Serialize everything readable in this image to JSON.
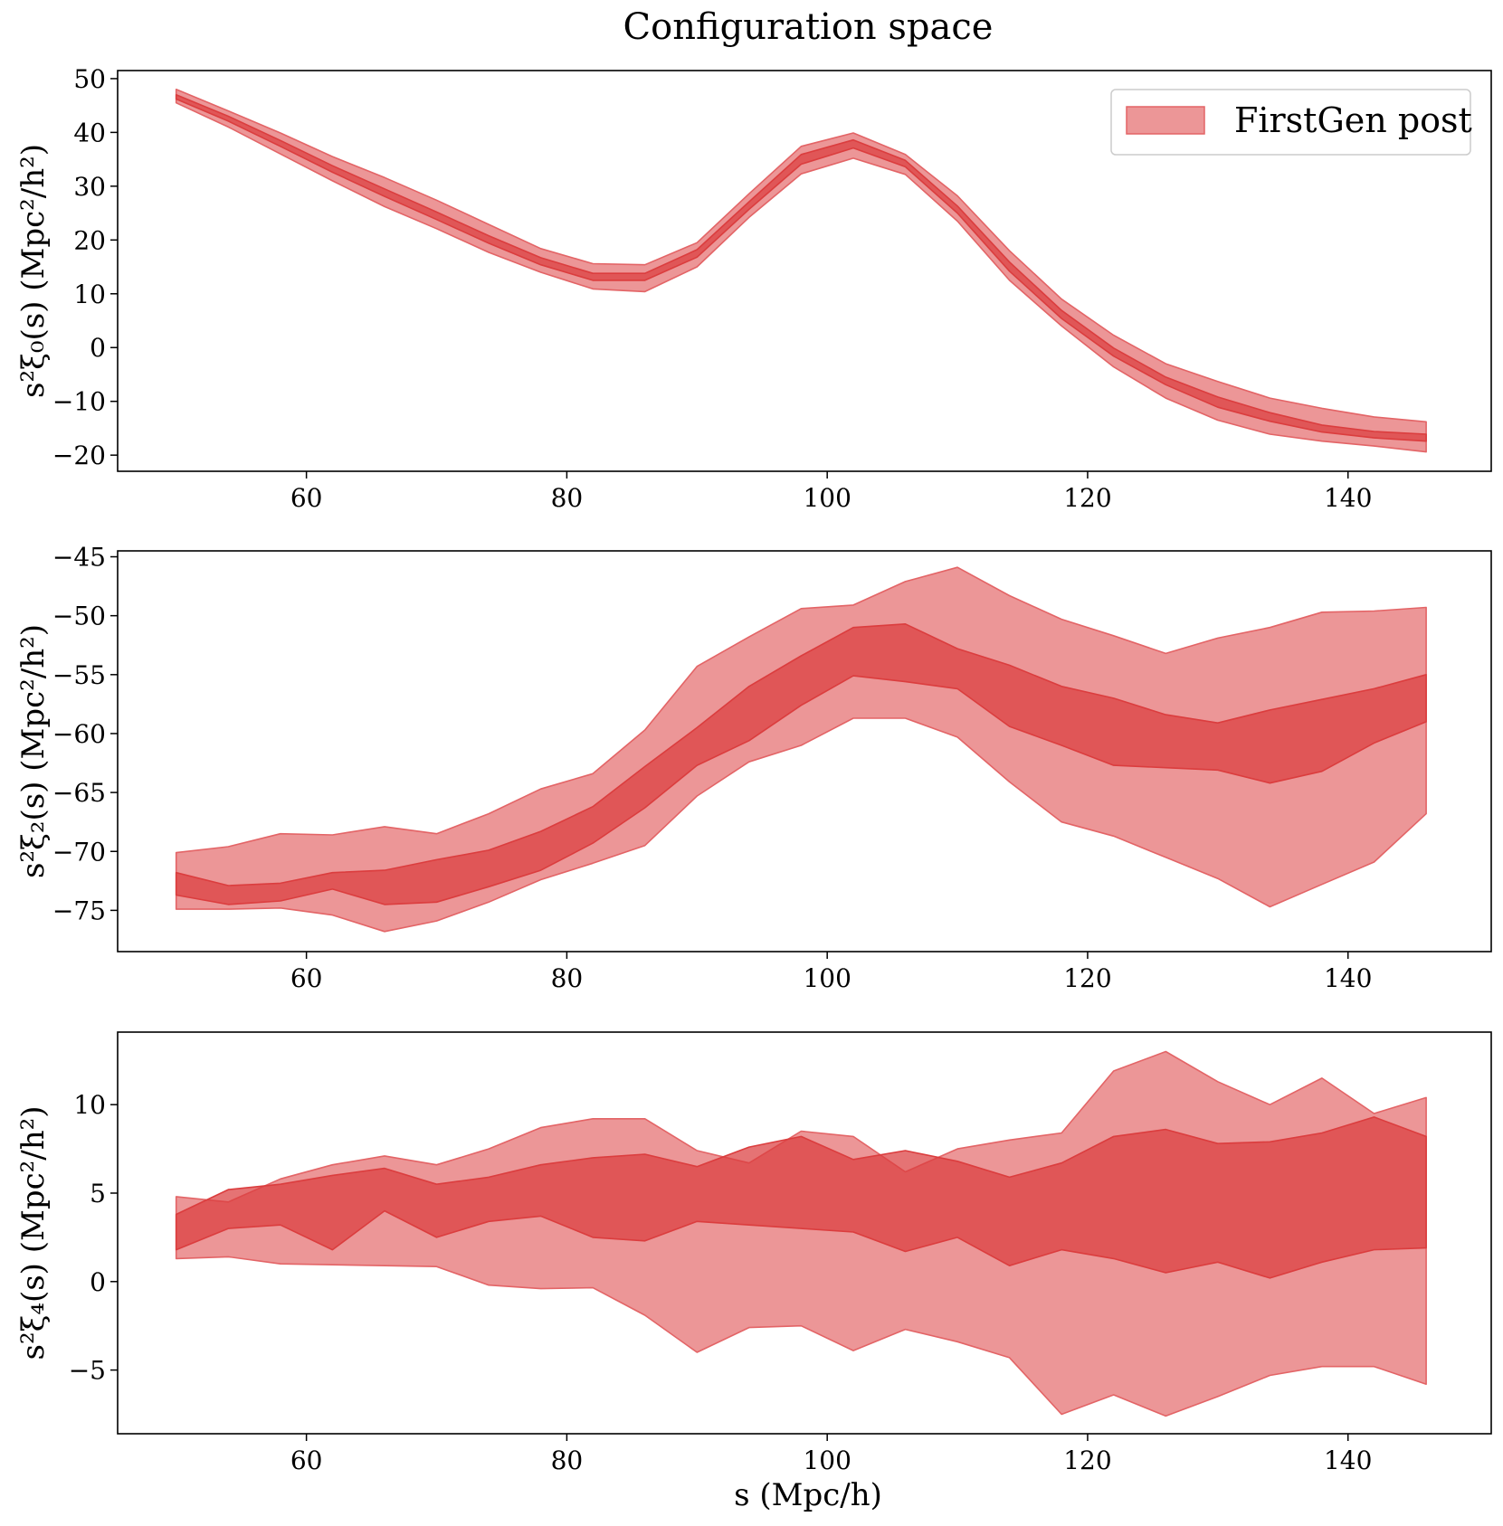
{
  "chart_data": {
    "type": "area",
    "title": "Configuration space",
    "legend": {
      "label": "FirstGen post",
      "location": "top-right",
      "color": "#e36466"
    },
    "colors": {
      "outer_band": "#e36466",
      "inner_band": "#db3d3e"
    },
    "xlabel": "s (Mpc/h)",
    "panels": [
      {
        "id": "xi0",
        "ylabel": "s²ξ₀(s) (Mpc²/h²)",
        "xlim": [
          45.5,
          151
        ],
        "ylim": [
          -23,
          51.5
        ],
        "xticks": [
          60,
          80,
          100,
          120,
          140
        ],
        "xtick_labels": [
          "60",
          "80",
          "100",
          "120",
          "140"
        ],
        "yticks": [
          -20,
          -10,
          0,
          10,
          20,
          30,
          40,
          50
        ],
        "ytick_labels": [
          "−20",
          "−10",
          "0",
          "10",
          "20",
          "30",
          "40",
          "50"
        ],
        "x": [
          50,
          54,
          58,
          62,
          66,
          70,
          74,
          78,
          82,
          86,
          90,
          94,
          98,
          102,
          106,
          110,
          114,
          118,
          122,
          126,
          130,
          134,
          138,
          142,
          146
        ],
        "outer_upper": [
          48.0,
          44.0,
          39.9,
          35.5,
          31.6,
          27.4,
          22.9,
          18.4,
          15.6,
          15.4,
          19.5,
          28.6,
          37.4,
          39.9,
          35.9,
          28.2,
          18.0,
          9.0,
          2.3,
          -3.0,
          -6.3,
          -9.4,
          -11.3,
          -12.9,
          -13.8
        ],
        "outer_lower": [
          45.5,
          41.0,
          36.0,
          31.0,
          26.2,
          22.1,
          17.7,
          14.0,
          10.9,
          10.4,
          15.0,
          24.2,
          32.3,
          35.2,
          32.2,
          23.5,
          12.5,
          4.0,
          -3.6,
          -9.4,
          -13.5,
          -16.1,
          -17.4,
          -18.3,
          -19.4
        ],
        "inner_upper": [
          47.0,
          43.0,
          38.5,
          33.8,
          29.5,
          25.2,
          20.8,
          16.7,
          13.8,
          13.8,
          18.2,
          27.1,
          35.9,
          38.6,
          34.8,
          26.3,
          15.9,
          6.9,
          -0.1,
          -5.5,
          -9.2,
          -12.1,
          -14.4,
          -15.6,
          -16.1
        ],
        "inner_lower": [
          46.2,
          42.1,
          37.4,
          32.6,
          28.1,
          23.8,
          19.4,
          15.4,
          12.5,
          12.5,
          16.8,
          25.7,
          34.1,
          37.1,
          33.6,
          25.0,
          14.2,
          5.4,
          -1.6,
          -6.9,
          -11.1,
          -13.7,
          -15.7,
          -16.8,
          -17.4
        ]
      },
      {
        "id": "xi2",
        "ylabel": "s²ξ₂(s) (Mpc²/h²)",
        "xlim": [
          45.5,
          151
        ],
        "ylim": [
          -78.5,
          -44.5
        ],
        "xticks": [
          60,
          80,
          100,
          120,
          140
        ],
        "xtick_labels": [
          "60",
          "80",
          "100",
          "120",
          "140"
        ],
        "yticks": [
          -75,
          -70,
          -65,
          -60,
          -55,
          -50,
          -45
        ],
        "ytick_labels": [
          "−75",
          "−70",
          "−65",
          "−60",
          "−55",
          "−50",
          "−45"
        ],
        "x": [
          50,
          54,
          58,
          62,
          66,
          70,
          74,
          78,
          82,
          86,
          90,
          94,
          98,
          102,
          106,
          110,
          114,
          118,
          122,
          126,
          130,
          134,
          138,
          142,
          146
        ],
        "outer_upper": [
          -70.1,
          -69.6,
          -68.5,
          -68.6,
          -67.9,
          -68.5,
          -66.8,
          -64.7,
          -63.4,
          -59.7,
          -54.3,
          -51.8,
          -49.4,
          -49.1,
          -47.1,
          -45.9,
          -48.3,
          -50.3,
          -51.7,
          -53.2,
          -51.9,
          -51.0,
          -49.7,
          -49.6,
          -49.3
        ],
        "outer_lower": [
          -74.9,
          -74.9,
          -74.8,
          -75.4,
          -76.8,
          -75.9,
          -74.3,
          -72.4,
          -71.0,
          -69.5,
          -65.3,
          -62.4,
          -61.0,
          -58.7,
          -58.7,
          -60.3,
          -64.1,
          -67.5,
          -68.7,
          -70.5,
          -72.3,
          -74.7,
          -72.8,
          -70.9,
          -66.8
        ],
        "inner_upper": [
          -71.8,
          -72.9,
          -72.7,
          -71.8,
          -71.6,
          -70.7,
          -69.9,
          -68.3,
          -66.2,
          -62.8,
          -59.5,
          -56.0,
          -53.4,
          -51.0,
          -50.7,
          -52.8,
          -54.2,
          -56.0,
          -57.0,
          -58.4,
          -59.1,
          -58.0,
          -57.1,
          -56.2,
          -55.0
        ],
        "inner_lower": [
          -73.7,
          -74.5,
          -74.2,
          -73.2,
          -74.5,
          -74.3,
          -73.0,
          -71.6,
          -69.3,
          -66.3,
          -62.7,
          -60.6,
          -57.6,
          -55.1,
          -55.6,
          -56.2,
          -59.4,
          -61.0,
          -62.7,
          -62.9,
          -63.1,
          -64.2,
          -63.2,
          -60.8,
          -59.0
        ]
      },
      {
        "id": "xi4",
        "ylabel": "s²ξ₄(s) (Mpc²/h²)",
        "xlim": [
          45.5,
          151
        ],
        "ylim": [
          -8.6,
          14.1
        ],
        "xticks": [
          60,
          80,
          100,
          120,
          140
        ],
        "xtick_labels": [
          "60",
          "80",
          "100",
          "120",
          "140"
        ],
        "yticks": [
          -5,
          0,
          5,
          10
        ],
        "ytick_labels": [
          "−5",
          "0",
          "5",
          "10"
        ],
        "x": [
          50,
          54,
          58,
          62,
          66,
          70,
          74,
          78,
          82,
          86,
          90,
          94,
          98,
          102,
          106,
          110,
          114,
          118,
          122,
          126,
          130,
          134,
          138,
          142,
          146
        ],
        "outer_upper": [
          4.8,
          4.5,
          5.8,
          6.6,
          7.1,
          6.6,
          7.5,
          8.7,
          9.2,
          9.2,
          7.4,
          6.7,
          8.5,
          8.2,
          6.2,
          7.5,
          8.0,
          8.4,
          11.9,
          13.0,
          11.3,
          10.0,
          11.5,
          9.5,
          10.4
        ],
        "outer_lower": [
          1.3,
          1.4,
          1.0,
          0.95,
          0.9,
          0.85,
          -0.2,
          -0.4,
          -0.35,
          -1.9,
          -4.0,
          -2.6,
          -2.5,
          -3.9,
          -2.7,
          -3.4,
          -4.3,
          -7.5,
          -6.4,
          -7.6,
          -6.5,
          -5.3,
          -4.8,
          -4.8,
          -5.8
        ],
        "inner_upper": [
          3.8,
          5.2,
          5.5,
          6.0,
          6.4,
          5.5,
          5.9,
          6.6,
          7.0,
          7.2,
          6.5,
          7.6,
          8.2,
          6.9,
          7.4,
          6.8,
          5.9,
          6.7,
          8.2,
          8.6,
          7.8,
          7.9,
          8.4,
          9.3,
          8.2
        ],
        "inner_lower": [
          1.8,
          3.0,
          3.2,
          1.8,
          4.0,
          2.5,
          3.4,
          3.7,
          2.5,
          2.3,
          3.4,
          3.2,
          3.0,
          2.8,
          1.7,
          2.5,
          0.9,
          1.8,
          1.3,
          0.5,
          1.1,
          0.2,
          1.1,
          1.8,
          1.9
        ]
      }
    ]
  }
}
